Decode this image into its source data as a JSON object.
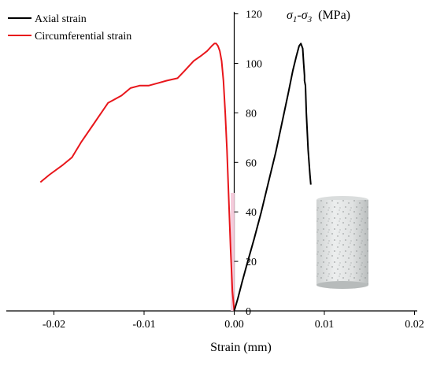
{
  "chart_data": {
    "type": "line",
    "title": "",
    "xlabel": "Strain (mm)",
    "ylabel": "σ1-σ3 (MPa)",
    "ylabel_parts": {
      "sigma1": "σ",
      "sub1": "1",
      "dash": "-",
      "sigma3": "σ",
      "sub3": "3",
      "unit": "(MPa)"
    },
    "xlim": [
      -0.025,
      0.02
    ],
    "ylim": [
      0,
      120
    ],
    "x_ticks": [
      -0.02,
      -0.01,
      0.0,
      0.01,
      0.02
    ],
    "x_tick_labels": [
      "-0.02",
      "-0.01",
      "0.00",
      "0.01",
      "0.02"
    ],
    "y_ticks": [
      0,
      20,
      40,
      60,
      80,
      100,
      120
    ],
    "y_tick_labels": [
      "0",
      "20",
      "40",
      "60",
      "80",
      "100",
      "120"
    ],
    "grid": false,
    "legend_position": "top-left",
    "series": [
      {
        "name": "Axial strain",
        "color": "#000000",
        "x": [
          0.0,
          0.0004,
          0.0009,
          0.0015,
          0.0022,
          0.003,
          0.0038,
          0.0046,
          0.0053,
          0.006,
          0.0065,
          0.0069,
          0.0072,
          0.0074,
          0.0076,
          0.0077,
          0.0078,
          0.0078,
          0.0079,
          0.008,
          0.0082,
          0.0084,
          0.0085
        ],
        "y": [
          0,
          5,
          12,
          20,
          29,
          40,
          52,
          64,
          76,
          88,
          97,
          103,
          107,
          108,
          106,
          100,
          95,
          93,
          91,
          80,
          65,
          55,
          51
        ]
      },
      {
        "name": "Circumferential strain",
        "color": "#e8161b",
        "x": [
          -0.0215,
          -0.0205,
          -0.019,
          -0.018,
          -0.017,
          -0.0155,
          -0.014,
          -0.0125,
          -0.0115,
          -0.0105,
          -0.0095,
          -0.0085,
          -0.0075,
          -0.0063,
          -0.0055,
          -0.0045,
          -0.0037,
          -0.003,
          -0.0025,
          -0.0022,
          -0.002,
          -0.0018,
          -0.0016,
          -0.0014,
          -0.0012,
          -0.001,
          -0.0008,
          -0.0006,
          -0.0004,
          -0.0002,
          0.0
        ],
        "y": [
          52,
          55,
          59,
          62,
          68,
          76,
          84,
          87,
          90,
          91,
          91,
          92,
          93,
          94,
          97,
          101,
          103,
          105,
          107,
          108,
          108,
          107,
          105,
          101,
          93,
          80,
          65,
          45,
          25,
          8,
          0
        ]
      }
    ],
    "annotations": [
      {
        "text": "specimen photo (cylindrical rock sample)",
        "type": "image"
      }
    ]
  },
  "colors": {
    "axis": "#000000",
    "axial": "#000000",
    "circumferential": "#e8161b",
    "zero_band": "#f4c6d8"
  },
  "icons": {
    "specimen": "rock-cylinder-photo"
  }
}
